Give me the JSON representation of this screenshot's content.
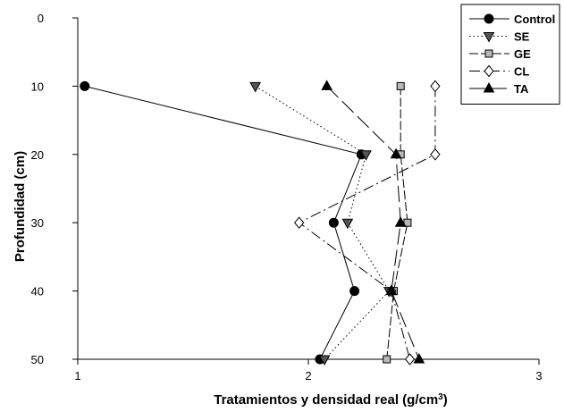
{
  "chart_data": {
    "type": "line",
    "xlabel": "Tratamientos y densidad real (g/cm",
    "xlabel_sup": "3",
    "xlabel_end": ")",
    "ylabel": "Profundidad (cm)",
    "xlim": [
      1,
      3
    ],
    "ylim": [
      0,
      50
    ],
    "y_inverted": true,
    "x_ticks": [
      1,
      2,
      3
    ],
    "x_tick_labels": [
      "1",
      "2",
      "3"
    ],
    "y_ticks": [
      0,
      10,
      20,
      30,
      40,
      50
    ],
    "y_tick_labels": [
      "0",
      "10",
      "20",
      "30",
      "40",
      "50"
    ],
    "legend_position": "top-right",
    "series": [
      {
        "name": "Control",
        "marker": "circle",
        "dash": "solid",
        "points": [
          [
            1.03,
            10
          ],
          [
            2.23,
            20
          ],
          [
            2.11,
            30
          ],
          [
            2.2,
            40
          ],
          [
            2.05,
            50
          ]
        ]
      },
      {
        "name": "SE",
        "marker": "triangle-down",
        "dash": "dotted",
        "points": [
          [
            1.77,
            10
          ],
          [
            2.25,
            20
          ],
          [
            2.17,
            30
          ],
          [
            2.35,
            40
          ],
          [
            2.07,
            50
          ]
        ]
      },
      {
        "name": "GE",
        "marker": "square",
        "dash": "dashed",
        "points": [
          [
            2.4,
            10
          ],
          [
            2.4,
            20
          ],
          [
            2.43,
            30
          ],
          [
            2.37,
            40
          ],
          [
            2.34,
            50
          ]
        ]
      },
      {
        "name": "CL",
        "marker": "diamond",
        "dash": "dashdot",
        "points": [
          [
            2.55,
            10
          ],
          [
            2.55,
            20
          ],
          [
            1.96,
            30
          ],
          [
            2.36,
            40
          ],
          [
            2.44,
            50
          ]
        ]
      },
      {
        "name": "TA",
        "marker": "triangle-up",
        "dash": "longdash",
        "points": [
          [
            2.08,
            10
          ],
          [
            2.38,
            20
          ],
          [
            2.4,
            30
          ],
          [
            2.36,
            40
          ],
          [
            2.48,
            50
          ]
        ]
      }
    ]
  },
  "colors": {
    "Control": "#000000",
    "SE": "#555555",
    "GE": "#b8b8b8",
    "CL": "#ffffff",
    "TA": "#000000"
  }
}
